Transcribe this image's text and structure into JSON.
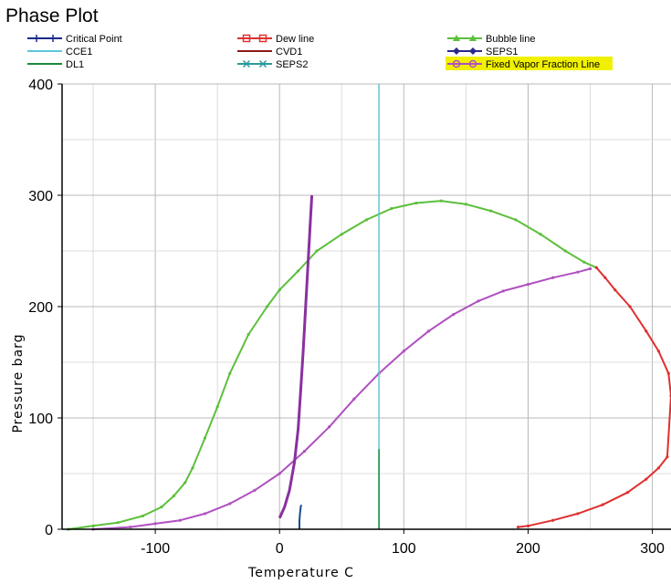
{
  "title": "Phase Plot",
  "chart_data": {
    "type": "line",
    "title": "Phase Plot",
    "xlabel": "Temperature  C",
    "ylabel": "Pressure  barg",
    "xlim": [
      -175,
      315
    ],
    "ylim": [
      0,
      400
    ],
    "xticks": [
      -100,
      0,
      100,
      200,
      300
    ],
    "yticks": [
      0,
      100,
      200,
      300,
      400
    ],
    "grid": true,
    "legend_position": "top",
    "legend": [
      {
        "name": "Critical Point",
        "color": "#1a2a8c",
        "marker": "plus"
      },
      {
        "name": "Dew line",
        "color": "#e03030",
        "marker": "square"
      },
      {
        "name": "Bubble line",
        "color": "#5cbf3c",
        "marker": "triangle"
      },
      {
        "name": "CCE1",
        "color": "#5bc8d8",
        "marker": "none"
      },
      {
        "name": "CVD1",
        "color": "#8b1a1a",
        "marker": "none"
      },
      {
        "name": "SEPS1",
        "color": "#2a2a8c",
        "marker": "diamond"
      },
      {
        "name": "DL1",
        "color": "#1a8a3c",
        "marker": "none"
      },
      {
        "name": "SEPS2",
        "color": "#2a9a9a",
        "marker": "x"
      },
      {
        "name": "Fixed Vapor Fraction Line",
        "color": "#b050c0",
        "marker": "circle",
        "highlight": "#f0f000"
      }
    ],
    "series": [
      {
        "name": "Bubble line",
        "color": "#5cbf3c",
        "x": [
          -170,
          -150,
          -130,
          -110,
          -95,
          -85,
          -76,
          -70,
          -60,
          -50,
          -40,
          -25,
          -10,
          0,
          15,
          30,
          50,
          70,
          90,
          110,
          130,
          150,
          170,
          190,
          210,
          230,
          245,
          255
        ],
        "y": [
          0,
          3,
          6,
          12,
          20,
          30,
          42,
          55,
          82,
          110,
          140,
          175,
          200,
          215,
          232,
          250,
          265,
          278,
          288,
          293,
          295,
          292,
          286,
          278,
          265,
          250,
          240,
          235
        ]
      },
      {
        "name": "Dew line",
        "color": "#e03030",
        "x": [
          192,
          200,
          220,
          240,
          260,
          280,
          295,
          305,
          312,
          315,
          313,
          305,
          295,
          282,
          270,
          262,
          255
        ],
        "y": [
          2,
          3,
          8,
          14,
          22,
          33,
          45,
          55,
          65,
          120,
          140,
          160,
          178,
          200,
          215,
          226,
          235
        ]
      },
      {
        "name": "Fixed Vapor Fraction Line",
        "color": "#b050c0",
        "x": [
          -150,
          -120,
          -100,
          -80,
          -60,
          -40,
          -20,
          0,
          20,
          40,
          60,
          80,
          100,
          120,
          140,
          160,
          180,
          200,
          220,
          240,
          250
        ],
        "y": [
          0,
          2,
          5,
          8,
          14,
          23,
          35,
          50,
          70,
          92,
          117,
          140,
          160,
          178,
          193,
          205,
          214,
          220,
          226,
          231,
          234
        ]
      },
      {
        "name": "SEPS1",
        "color": "#8a30a0",
        "x": [
          0,
          4,
          8,
          12,
          15,
          17,
          19,
          21,
          23,
          25,
          26
        ],
        "y": [
          10,
          20,
          35,
          60,
          90,
          125,
          160,
          200,
          240,
          280,
          300
        ]
      },
      {
        "name": "Critical Point",
        "color": "#1a4a8c",
        "x": [
          16,
          16,
          16.5,
          17,
          17.5
        ],
        "y": [
          0,
          8,
          15,
          20,
          22
        ]
      },
      {
        "name": "CCE1",
        "color": "#5bc8d8",
        "x": [
          80,
          80
        ],
        "y": [
          0,
          400
        ]
      },
      {
        "name": "DL1",
        "color": "#1a8a3c",
        "x": [
          80,
          80
        ],
        "y": [
          0,
          72
        ]
      }
    ]
  }
}
